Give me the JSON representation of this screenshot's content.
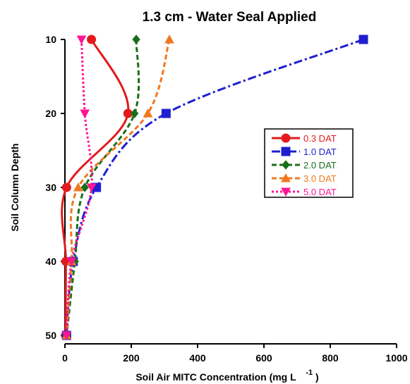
{
  "chart_data": {
    "type": "line",
    "title": "1.3 cm - Water Seal Applied",
    "xlabel": "Soil Air MITC Concentration (mg L",
    "xlabel_sup": "-1",
    "xlabel_close": ")",
    "ylabel": "Soil Column Depth",
    "xlim": [
      0,
      1000
    ],
    "ylim": [
      50,
      10
    ],
    "y_inverted": true,
    "x_ticks": [
      "0",
      "200",
      "400",
      "600",
      "800",
      "1000"
    ],
    "y_ticks": [
      "10",
      "20",
      "30",
      "40",
      "50"
    ],
    "legend_position": "right-middle",
    "series": [
      {
        "name": "0.3 DAT",
        "color": "#e31a1c",
        "marker": "circle",
        "dash": "solid",
        "x": [
          80,
          190,
          5,
          3,
          2
        ],
        "y": [
          10,
          20,
          30,
          40,
          50
        ]
      },
      {
        "name": "1.0 DAT",
        "color": "#1f1fd0",
        "marker": "square",
        "dash": "dashdot",
        "x": [
          900,
          305,
          95,
          25,
          5
        ],
        "y": [
          10,
          20,
          30,
          40,
          50
        ]
      },
      {
        "name": "2.0 DAT",
        "color": "#1a6e1a",
        "marker": "diamond",
        "dash": "dash",
        "x": [
          215,
          210,
          60,
          30,
          5
        ],
        "y": [
          10,
          20,
          30,
          40,
          50
        ]
      },
      {
        "name": "3.0 DAT",
        "color": "#f07820",
        "marker": "triangle-up",
        "dash": "dash",
        "x": [
          315,
          250,
          40,
          20,
          5
        ],
        "y": [
          10,
          20,
          30,
          40,
          50
        ]
      },
      {
        "name": "5.0 DAT",
        "color": "#ff1493",
        "marker": "triangle-down",
        "dash": "dot",
        "x": [
          50,
          60,
          80,
          20,
          5
        ],
        "y": [
          10,
          20,
          30,
          40,
          50
        ]
      }
    ]
  }
}
